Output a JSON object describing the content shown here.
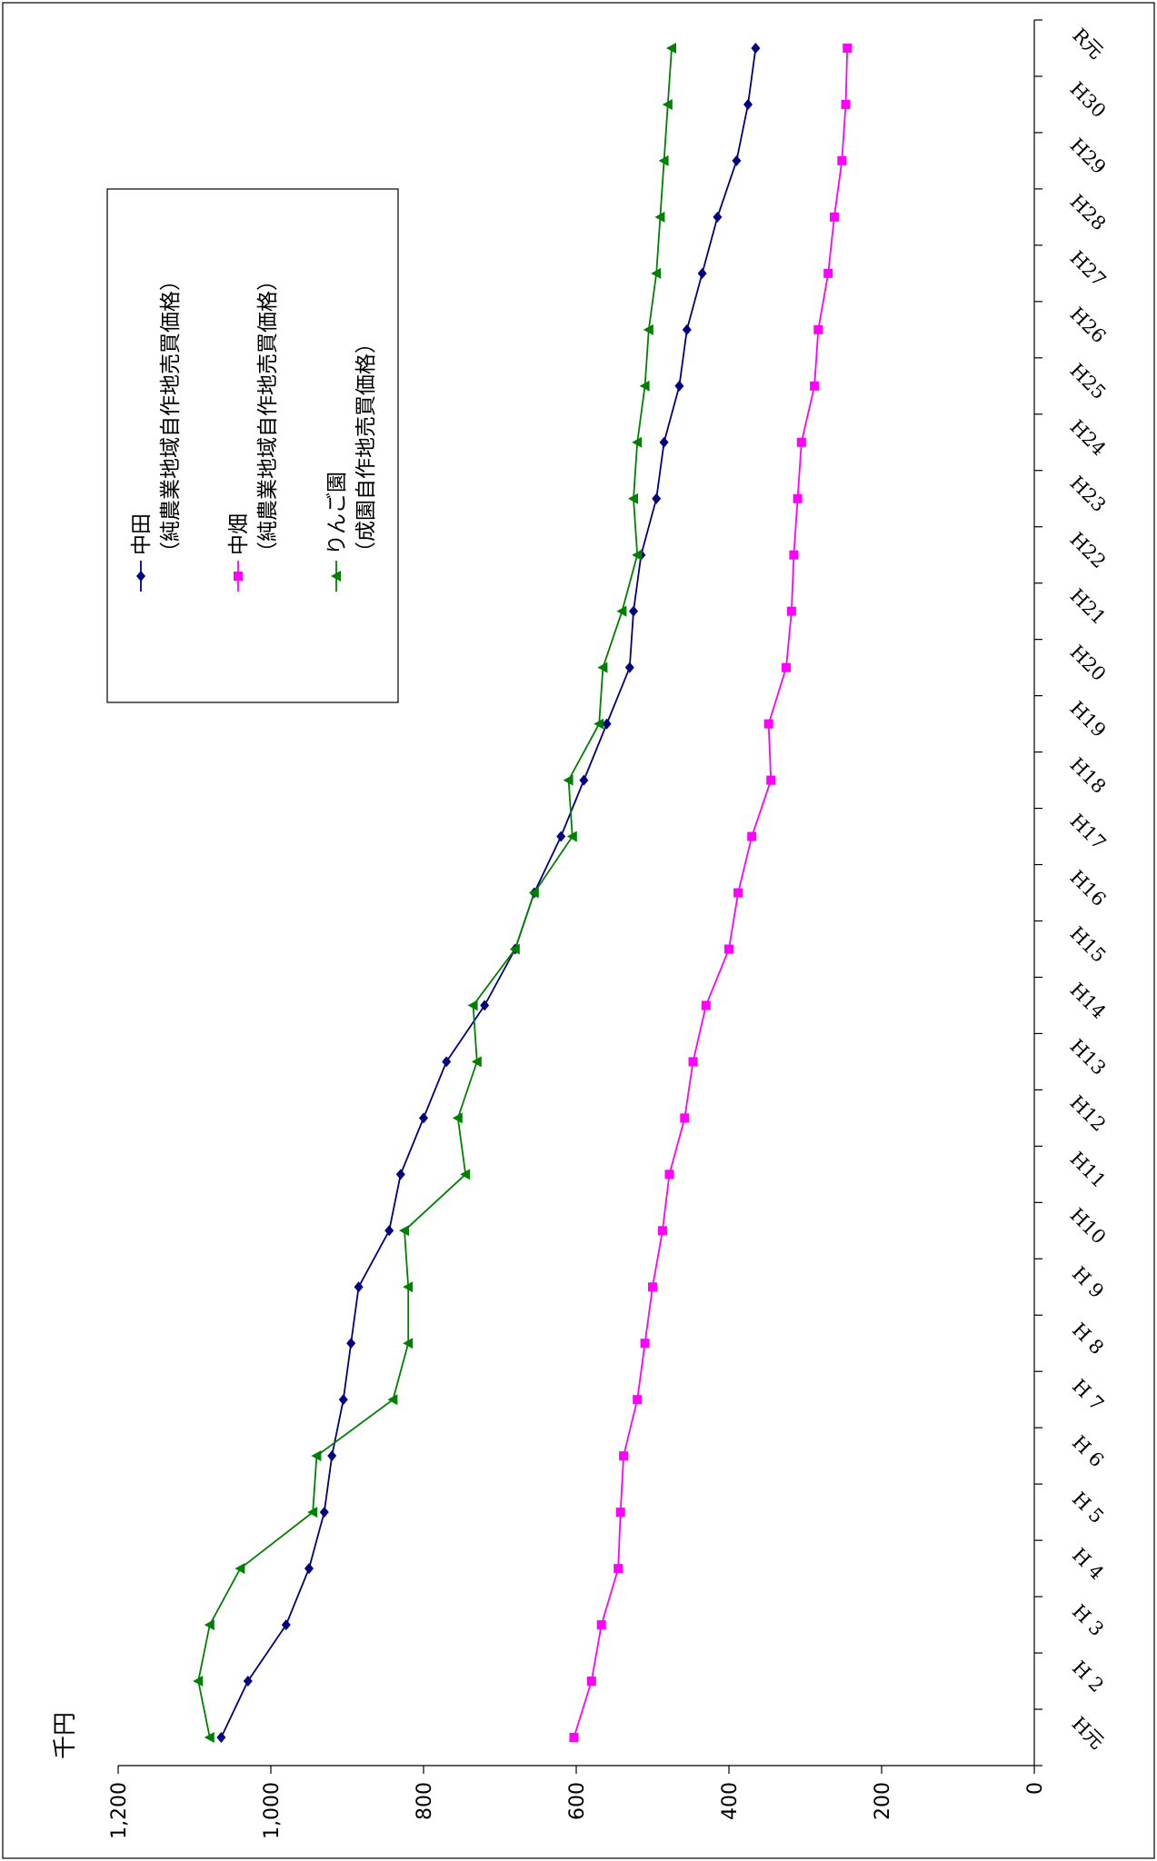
{
  "chart_data": {
    "type": "line",
    "orientation": "rotated-90-clockwise",
    "unit_label": "千円",
    "categories": [
      "H元",
      "H 2",
      "H 3",
      "H 4",
      "H 5",
      "H 6",
      "H 7",
      "H 8",
      "H 9",
      "H10",
      "H11",
      "H12",
      "H13",
      "H14",
      "H15",
      "H16",
      "H17",
      "H18",
      "H19",
      "H20",
      "H21",
      "H22",
      "H23",
      "H24",
      "H25",
      "H26",
      "H27",
      "H28",
      "H29",
      "H30",
      "R元"
    ],
    "ylim": [
      0,
      1200
    ],
    "yticks": [
      0,
      200,
      400,
      600,
      800,
      1000,
      1200
    ],
    "ytick_labels": [
      "0",
      "200",
      "400",
      "600",
      "800",
      "1,000",
      "1,200"
    ],
    "grid": false,
    "legend_position": "upper-left (rotated)",
    "series": [
      {
        "name": "中田",
        "name_sub": "（純農業地域自作地売買価格）",
        "color": "#000080",
        "marker": "diamond",
        "values": [
          1065,
          1030,
          980,
          950,
          930,
          920,
          905,
          895,
          885,
          845,
          830,
          800,
          770,
          720,
          680,
          655,
          620,
          590,
          560,
          530,
          525,
          515,
          495,
          485,
          465,
          455,
          435,
          415,
          390,
          375,
          365
        ]
      },
      {
        "name": "中畑",
        "name_sub": "（純農業地域自作地売買価格）",
        "color": "#ff00ff",
        "marker": "square",
        "values": [
          603,
          580,
          567,
          545,
          542,
          538,
          520,
          510,
          500,
          487,
          478,
          458,
          447,
          430,
          400,
          388,
          370,
          345,
          348,
          325,
          318,
          315,
          310,
          305,
          288,
          283,
          270,
          262,
          252,
          247,
          245
        ]
      },
      {
        "name": "りんご園",
        "name_sub": "（成園自作地売買価格）",
        "color": "#008000",
        "marker": "triangle",
        "values": [
          1080,
          1095,
          1080,
          1040,
          945,
          940,
          840,
          820,
          820,
          825,
          745,
          755,
          730,
          735,
          680,
          655,
          605,
          610,
          570,
          565,
          540,
          520,
          525,
          520,
          510,
          505,
          495,
          490,
          485,
          480,
          475
        ]
      }
    ]
  }
}
